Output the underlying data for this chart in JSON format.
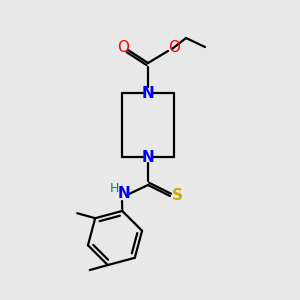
{
  "background_color": "#e8e8e8",
  "atom_colors": {
    "N": "#0000ff",
    "O": "#ff0000",
    "S": "#ccaa00",
    "H": "#008888"
  },
  "bond_color": "#000000",
  "lw": 1.6,
  "figsize": [
    3.0,
    3.0
  ],
  "dpi": 100,
  "xlim": [
    0,
    300
  ],
  "ylim": [
    0,
    300
  ]
}
